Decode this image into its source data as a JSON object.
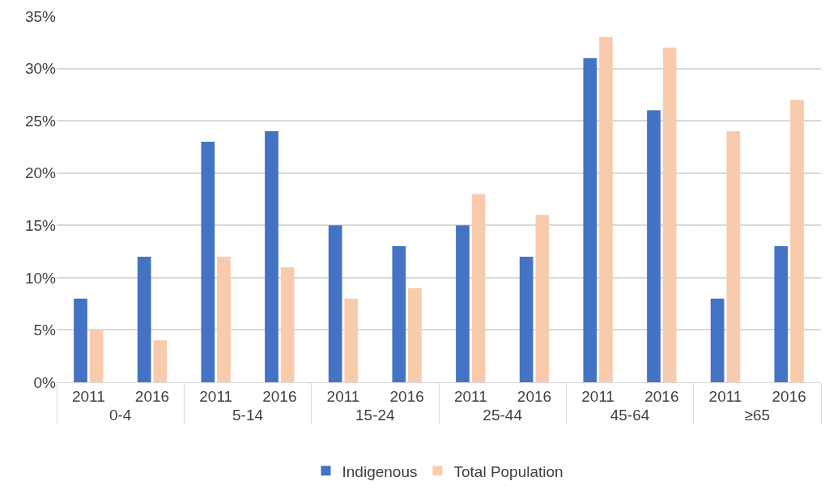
{
  "chart_data": {
    "type": "bar",
    "categories": [
      "2011",
      "2016",
      "2011",
      "2016",
      "2011",
      "2016",
      "2011",
      "2016",
      "2011",
      "2016",
      "2011",
      "2016"
    ],
    "annotations": [
      "0-4",
      "5-14",
      "15-24",
      "25-44",
      "45-64",
      "≥65"
    ],
    "series": [
      {
        "name": "Indigenous",
        "color": "#4472c4",
        "values": [
          8,
          12,
          23,
          24,
          15,
          13,
          15,
          12,
          31,
          26,
          8,
          13
        ]
      },
      {
        "name": "Total Population",
        "color": "#f8cbad",
        "values": [
          5,
          4,
          12,
          11,
          8,
          9,
          18,
          16,
          33,
          32,
          24,
          27
        ]
      }
    ],
    "ylim": [
      0,
      35
    ],
    "yticks": [
      {
        "value": 0,
        "label": "0%"
      },
      {
        "value": 5,
        "label": "5%"
      },
      {
        "value": 10,
        "label": "10%"
      },
      {
        "value": 15,
        "label": "15%"
      },
      {
        "value": 20,
        "label": "20%"
      },
      {
        "value": 25,
        "label": "25%"
      },
      {
        "value": 30,
        "label": "30%"
      },
      {
        "value": 35,
        "label": "35%"
      }
    ],
    "grid": "y",
    "legend": "bottom"
  }
}
